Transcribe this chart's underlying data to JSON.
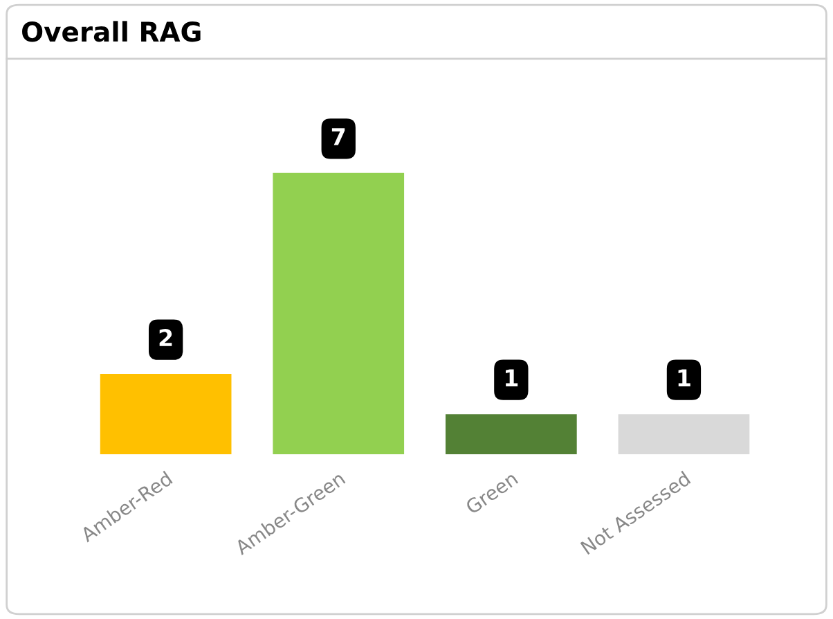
{
  "chart_data": {
    "type": "bar",
    "title": "Overall RAG",
    "categories": [
      "Amber-Red",
      "Amber-Green",
      "Green",
      "Not Assessed"
    ],
    "values": [
      2,
      7,
      1,
      1
    ],
    "colors": [
      "#ffc000",
      "#92d050",
      "#538135",
      "#d9d9d9"
    ],
    "data_labels": true,
    "grid": false,
    "legend": false
  }
}
